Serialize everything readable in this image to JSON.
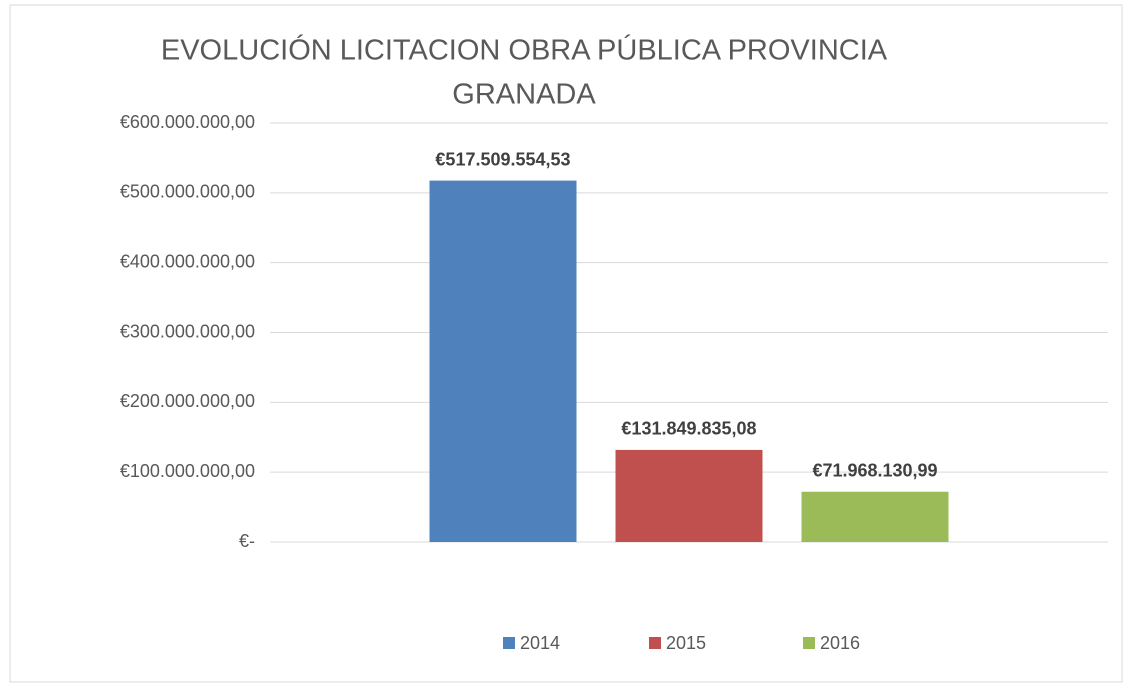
{
  "chart_data": {
    "type": "bar",
    "title": [
      "EVOLUCIÓN LICITACION OBRA PÚBLICA PROVINCIA",
      "GRANADA"
    ],
    "categories": [
      null
    ],
    "series": [
      {
        "name": "2014",
        "color": "#4f81bd",
        "values": [
          517509554.53
        ],
        "value_labels": [
          "€517.509.554,53"
        ]
      },
      {
        "name": "2015",
        "color": "#c0504d",
        "values": [
          131849835.08
        ],
        "value_labels": [
          "€131.849.835,08"
        ]
      },
      {
        "name": "2016",
        "color": "#9bbb59",
        "values": [
          71968130.99
        ],
        "value_labels": [
          "€71.968.130,99"
        ]
      }
    ],
    "ylim": [
      0,
      600000000
    ],
    "yticks": [
      {
        "value": 0,
        "label": "€-"
      },
      {
        "value": 100000000,
        "label": "€100.000.000,00"
      },
      {
        "value": 200000000,
        "label": "€200.000.000,00"
      },
      {
        "value": 300000000,
        "label": "€300.000.000,00"
      },
      {
        "value": 400000000,
        "label": "€400.000.000,00"
      },
      {
        "value": 500000000,
        "label": "€500.000.000,00"
      },
      {
        "value": 600000000,
        "label": "€600.000.000,00"
      }
    ],
    "grid": true,
    "legend": "bottom"
  }
}
